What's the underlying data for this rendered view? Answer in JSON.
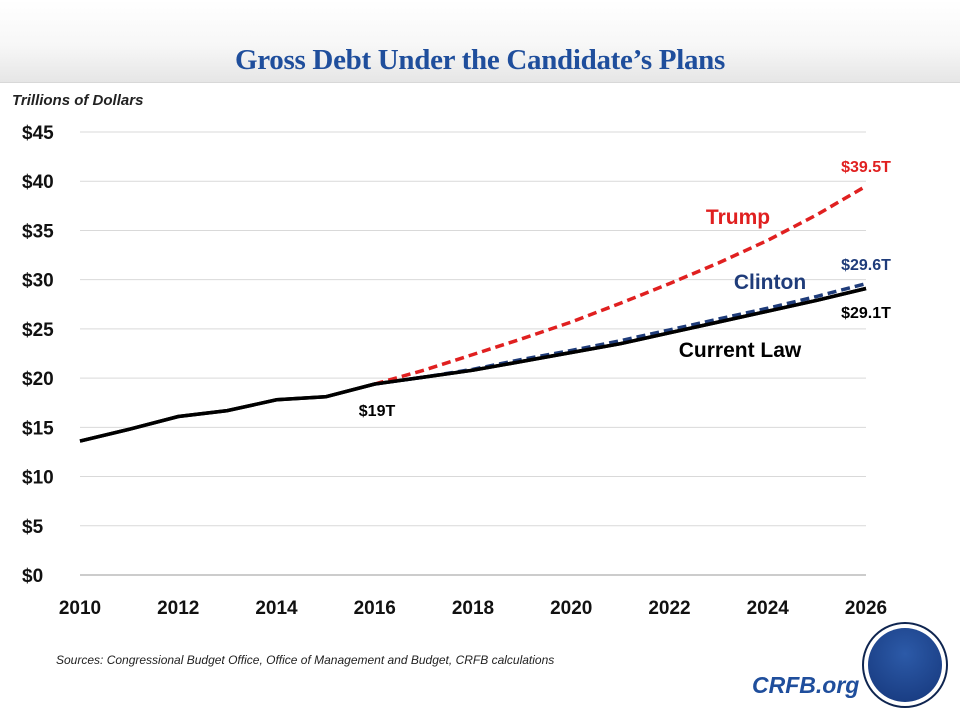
{
  "title": "Gross Debt Under the Candidate’s Plans",
  "unit_label": "Trillions  of Dollars",
  "source": "Sources: Congressional Budget Office, Office of Management and Budget, CRFB calculations",
  "site": "CRFB.org",
  "logo_text": "CRFB",
  "chart_data": {
    "type": "line",
    "title": "Gross Debt Under the Candidate’s Plans",
    "ylabel": "Trillions  of Dollars",
    "xlim": [
      2010,
      2026
    ],
    "ylim": [
      0,
      45
    ],
    "x_ticks": [
      "2010",
      "2012",
      "2014",
      "2016",
      "2018",
      "2020",
      "2022",
      "2024",
      "2026"
    ],
    "y_ticks": [
      "$0",
      "$5",
      "$10",
      "$15",
      "$20",
      "$25",
      "$30",
      "$35",
      "$40",
      "$45"
    ],
    "grid": "horizontal",
    "series": [
      {
        "name": "Current Law",
        "color": "#000000",
        "style": "solid",
        "x": [
          2010,
          2011,
          2012,
          2013,
          2014,
          2015,
          2016,
          2017,
          2018,
          2019,
          2020,
          2021,
          2022,
          2023,
          2024,
          2025,
          2026
        ],
        "y": [
          13.6,
          14.8,
          16.1,
          16.7,
          17.8,
          18.1,
          19.4,
          20.1,
          20.8,
          21.7,
          22.6,
          23.5,
          24.6,
          25.7,
          26.8,
          27.9,
          29.1
        ]
      },
      {
        "name": "Clinton",
        "color": "#1f3c7a",
        "style": "dashed",
        "x": [
          2016,
          2017,
          2018,
          2019,
          2020,
          2021,
          2022,
          2023,
          2024,
          2025,
          2026
        ],
        "y": [
          19.4,
          20.1,
          20.9,
          21.9,
          22.8,
          23.8,
          24.9,
          26.0,
          27.1,
          28.3,
          29.6
        ]
      },
      {
        "name": "Trump",
        "color": "#e02020",
        "style": "dashed",
        "x": [
          2016,
          2017,
          2018,
          2019,
          2020,
          2021,
          2022,
          2023,
          2024,
          2025,
          2026
        ],
        "y": [
          19.4,
          20.8,
          22.4,
          24.0,
          25.7,
          27.6,
          29.6,
          31.7,
          34.0,
          36.6,
          39.5
        ]
      }
    ],
    "annotations": [
      {
        "text": "$19T",
        "color": "#000000"
      },
      {
        "text": "$39.5T",
        "color": "#e02020"
      },
      {
        "text": "$29.6T",
        "color": "#1f3c7a"
      },
      {
        "text": "$29.1T",
        "color": "#000000"
      }
    ]
  }
}
